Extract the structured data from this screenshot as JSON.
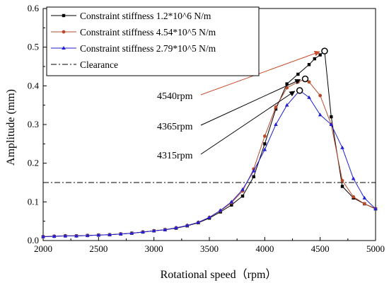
{
  "chart_data": {
    "type": "line",
    "xlabel": "Rotational speed（rpm）",
    "ylabel": "Amplitude (mm)",
    "xlim": [
      2000,
      5000
    ],
    "ylim": [
      0.0,
      0.6
    ],
    "xticks": [
      2000,
      2500,
      3000,
      3500,
      4000,
      4500,
      5000
    ],
    "yticks": [
      0.0,
      0.1,
      0.2,
      0.3,
      0.4,
      0.5,
      0.6
    ],
    "xtick_labels": [
      "2000",
      "2500",
      "3000",
      "3500",
      "4000",
      "4500",
      "5000"
    ],
    "ytick_labels": [
      "0.0",
      "0.1",
      "0.2",
      "0.3",
      "0.4",
      "0.5",
      "0.6"
    ],
    "legend_position": "top-left",
    "series": [
      {
        "name": "Constraint stiffness 1.2*10^6 N/m",
        "color": "#000000",
        "marker": "square",
        "x": [
          2000,
          2100,
          2200,
          2300,
          2400,
          2500,
          2600,
          2700,
          2800,
          2900,
          3000,
          3100,
          3200,
          3300,
          3400,
          3500,
          3600,
          3700,
          3800,
          3900,
          4000,
          4100,
          4200,
          4300,
          4400,
          4450,
          4500,
          4540,
          4600,
          4700,
          4800,
          4900,
          5000
        ],
        "values": [
          0.01,
          0.011,
          0.012,
          0.012,
          0.013,
          0.014,
          0.015,
          0.017,
          0.019,
          0.022,
          0.025,
          0.028,
          0.032,
          0.038,
          0.046,
          0.058,
          0.074,
          0.092,
          0.115,
          0.165,
          0.25,
          0.34,
          0.405,
          0.43,
          0.455,
          0.47,
          0.48,
          0.49,
          0.32,
          0.14,
          0.11,
          0.095,
          0.082
        ]
      },
      {
        "name": "Constraint stiffness 4.54*10^5 N/m",
        "color": "#b84a2c",
        "marker": "circle",
        "x": [
          2000,
          2100,
          2200,
          2300,
          2400,
          2500,
          2600,
          2700,
          2800,
          2900,
          3000,
          3100,
          3200,
          3300,
          3400,
          3500,
          3600,
          3700,
          3800,
          3900,
          4000,
          4100,
          4200,
          4300,
          4365,
          4400,
          4500,
          4600,
          4700,
          4800,
          4900,
          5000
        ],
        "values": [
          0.01,
          0.011,
          0.012,
          0.012,
          0.013,
          0.014,
          0.015,
          0.017,
          0.019,
          0.022,
          0.025,
          0.028,
          0.033,
          0.039,
          0.047,
          0.06,
          0.077,
          0.098,
          0.128,
          0.185,
          0.27,
          0.345,
          0.395,
          0.41,
          0.418,
          0.41,
          0.375,
          0.3,
          0.155,
          0.113,
          0.095,
          0.083
        ]
      },
      {
        "name": "Constraint stiffness 2.79*10^5 N/m",
        "color": "#1f1fd6",
        "marker": "triangle",
        "x": [
          2000,
          2100,
          2200,
          2300,
          2400,
          2500,
          2600,
          2700,
          2800,
          2900,
          3000,
          3100,
          3200,
          3300,
          3400,
          3500,
          3600,
          3700,
          3800,
          3900,
          4000,
          4100,
          4200,
          4315,
          4400,
          4500,
          4600,
          4700,
          4800,
          4900,
          5000
        ],
        "values": [
          0.01,
          0.011,
          0.012,
          0.012,
          0.013,
          0.014,
          0.015,
          0.017,
          0.019,
          0.022,
          0.025,
          0.028,
          0.033,
          0.039,
          0.047,
          0.06,
          0.078,
          0.1,
          0.132,
          0.18,
          0.235,
          0.3,
          0.35,
          0.388,
          0.37,
          0.325,
          0.3,
          0.24,
          0.16,
          0.11,
          0.082
        ]
      }
    ],
    "clearance": {
      "name": "Clearance",
      "value": 0.15,
      "color": "#000000"
    },
    "annotations": [
      {
        "text": "4540rpm",
        "peak_x": 4540,
        "peak_y": 0.49,
        "color": "#c94c2e"
      },
      {
        "text": "4365rpm",
        "peak_x": 4365,
        "peak_y": 0.418,
        "color": "#000000"
      },
      {
        "text": "4315rpm",
        "peak_x": 4315,
        "peak_y": 0.388,
        "color": "#000000"
      }
    ]
  }
}
